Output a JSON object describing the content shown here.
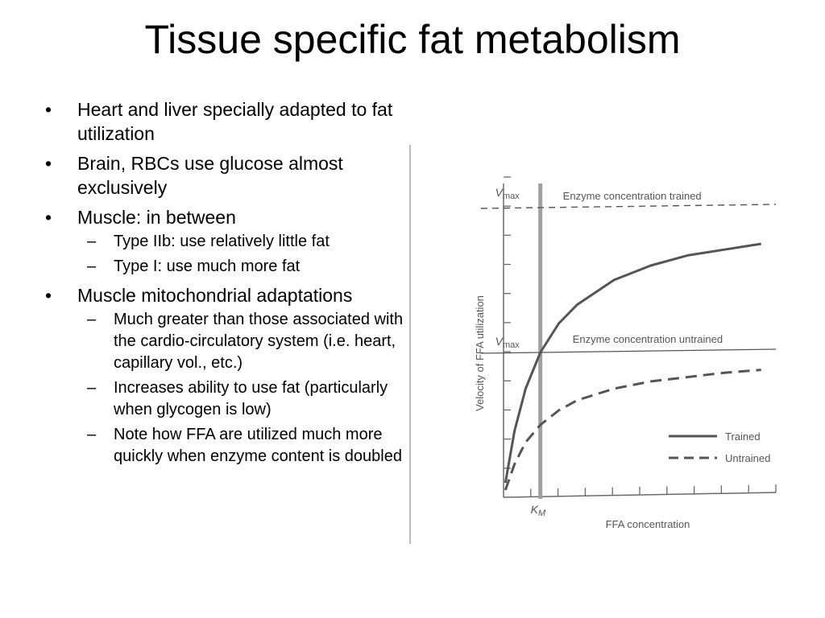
{
  "slide": {
    "title": "Tissue specific fat metabolism"
  },
  "bullets": [
    {
      "text": "Heart and liver specially adapted to fat utilization",
      "sub": []
    },
    {
      "text": "Brain, RBCs use glucose almost exclusively",
      "sub": []
    },
    {
      "text": "Muscle: in between",
      "sub": [
        "Type IIb: use relatively little fat",
        "Type I: use much more fat"
      ]
    },
    {
      "text": "Muscle mitochondrial adaptations",
      "sub": [
        "Much greater than those associated with the cardio-circulatory system (i.e. heart, capillary vol., etc.)",
        "Increases ability to use fat (particularly when glycogen is low)",
        "Note how FFA are utilized much more quickly when enzyme content is doubled"
      ]
    }
  ],
  "chart_data": {
    "type": "line",
    "title": "",
    "xlabel": "FFA concentration",
    "ylabel": "Velocity of FFA utilization",
    "x_tick_label": "K",
    "x_tick_label_sub": "M",
    "vmax_label": "V",
    "vmax_label_sub": "max",
    "annotations": {
      "vmax_trained": "Enzyme concentration trained",
      "vmax_untrained": "Enzyme concentration untrained"
    },
    "reference_lines": [
      {
        "name": "Vmax trained",
        "y": 2,
        "style": "dashed"
      },
      {
        "name": "Vmax untrained",
        "y": 1,
        "style": "solid"
      }
    ],
    "km": 1,
    "xlim": [
      0,
      7.4
    ],
    "ylim": [
      0,
      2.1
    ],
    "series": [
      {
        "name": "Trained",
        "style": "solid",
        "x": [
          0.05,
          0.3,
          0.6,
          1.0,
          1.5,
          2.0,
          3.0,
          4.0,
          5.0,
          6.0,
          7.0
        ],
        "y": [
          0.1,
          0.46,
          0.75,
          1.0,
          1.2,
          1.33,
          1.5,
          1.6,
          1.67,
          1.71,
          1.75
        ]
      },
      {
        "name": "Untrained",
        "style": "dashed",
        "x": [
          0.05,
          0.3,
          0.6,
          1.0,
          1.5,
          2.0,
          3.0,
          4.0,
          5.0,
          6.0,
          7.0
        ],
        "y": [
          0.05,
          0.23,
          0.38,
          0.5,
          0.6,
          0.67,
          0.75,
          0.8,
          0.83,
          0.86,
          0.88
        ]
      }
    ],
    "legend_position": "bottom-right",
    "colors": {
      "curves": "#555555",
      "axis": "#6a6a6a",
      "km_line": "#a0a0a0"
    }
  }
}
